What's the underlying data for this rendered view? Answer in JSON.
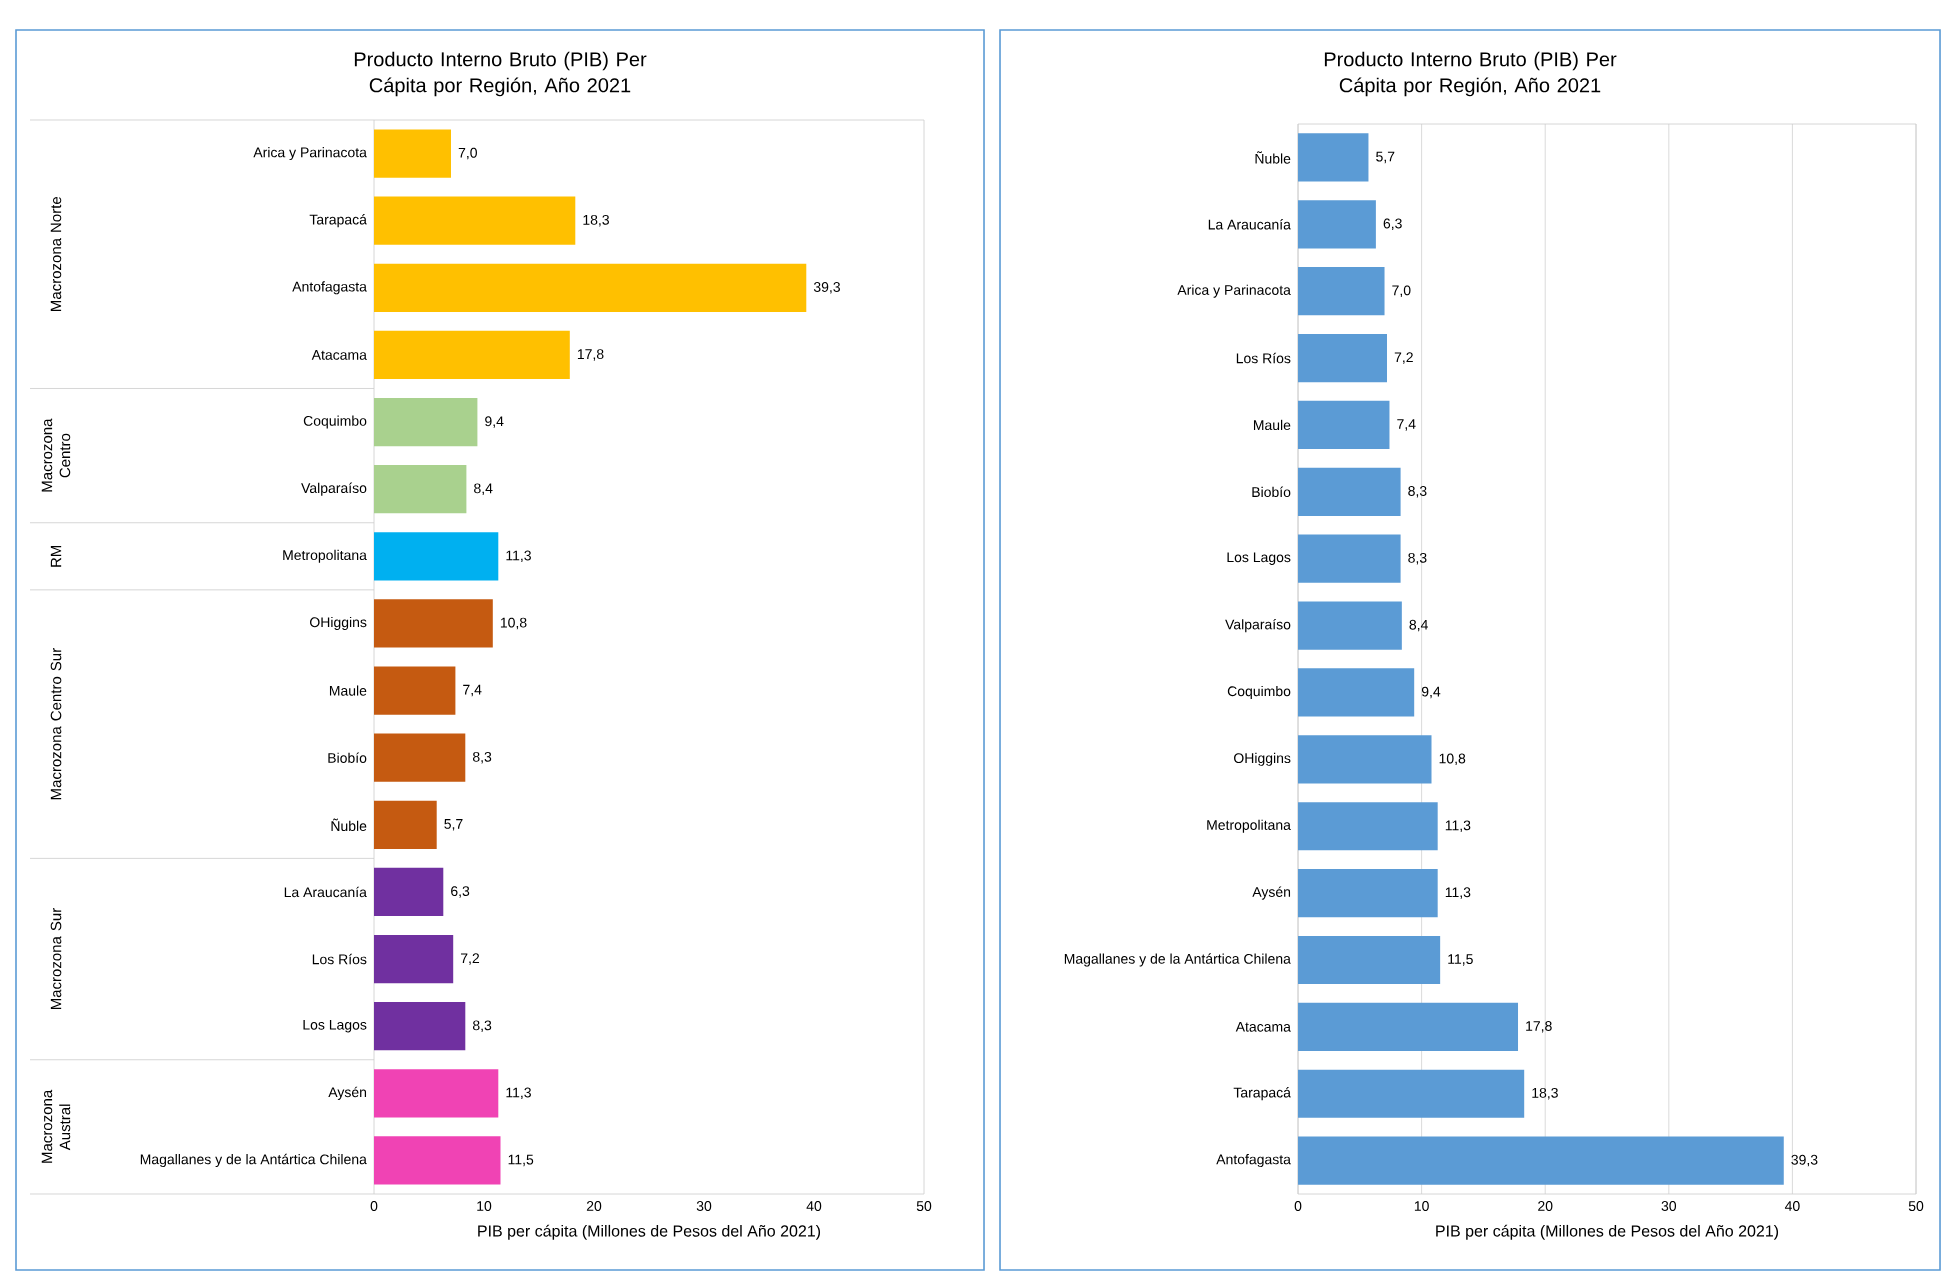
{
  "chart_data": [
    {
      "type": "bar",
      "orientation": "horizontal",
      "title": "Producto Interno Bruto (PIB) Per Cápita por Región, Año 2021",
      "xlabel": "PIB per cápita  (Millones de Pesos del  Año 2021)",
      "categories": [
        "Arica y Parinacota",
        "Tarapacá",
        "Antofagasta",
        "Atacama",
        "Coquimbo",
        "Valparaíso",
        "Metropolitana",
        "OHiggins",
        "Maule",
        "Biobío",
        "Ñuble",
        "La Araucanía",
        "Los Ríos",
        "Los Lagos",
        "Aysén",
        "Magallanes y de la Antártica Chilena"
      ],
      "values": [
        7.0,
        18.3,
        39.3,
        17.8,
        9.4,
        8.4,
        11.3,
        10.8,
        7.4,
        8.3,
        5.7,
        6.3,
        7.2,
        8.3,
        11.3,
        11.5
      ],
      "value_labels": [
        "7,0",
        "18,3",
        "39,3",
        "17,8",
        "9,4",
        "8,4",
        "11,3",
        "10,8",
        "7,4",
        "8,3",
        "5,7",
        "6,3",
        "7,2",
        "8,3",
        "11,3",
        "11,5"
      ],
      "colors": [
        "#ffc000",
        "#ffc000",
        "#ffc000",
        "#ffc000",
        "#a9d18e",
        "#a9d18e",
        "#00b0f0",
        "#c55a11",
        "#c55a11",
        "#c55a11",
        "#c55a11",
        "#7030a0",
        "#7030a0",
        "#7030a0",
        "#f043b4",
        "#f043b4"
      ],
      "annotations": [
        "Macrozona Norte",
        "Macrozona Centro",
        "RM",
        "Macrozona Centro Sur",
        "Macrozona Sur",
        "Macrozona Austral"
      ],
      "xlim": [
        0,
        50
      ],
      "xticks": [
        0,
        10,
        20,
        30,
        40,
        50
      ],
      "grid": false
    },
    {
      "type": "bar",
      "orientation": "horizontal",
      "title": "Producto Interno Bruto (PIB) Per Cápita por Región, Año 2021",
      "xlabel": "PIB per cápita  (Millones de Pesos del  Año 2021)",
      "categories": [
        "Ñuble",
        "La Araucanía",
        "Arica y Parinacota",
        "Los Ríos",
        "Maule",
        "Biobío",
        "Los Lagos",
        "Valparaíso",
        "Coquimbo",
        "OHiggins",
        "Metropolitana",
        "Aysén",
        "Magallanes y de la Antártica Chilena",
        "Atacama",
        "Tarapacá",
        "Antofagasta"
      ],
      "values": [
        5.7,
        6.3,
        7.0,
        7.2,
        7.4,
        8.3,
        8.3,
        8.4,
        9.4,
        10.8,
        11.3,
        11.3,
        11.5,
        17.8,
        18.3,
        39.3
      ],
      "value_labels": [
        "5,7",
        "6,3",
        "7,0",
        "7,2",
        "7,4",
        "8,3",
        "8,3",
        "8,4",
        "9,4",
        "10,8",
        "11,3",
        "11,3",
        "11,5",
        "17,8",
        "18,3",
        "39,3"
      ],
      "color": "#5b9bd5",
      "xlim": [
        0,
        50
      ],
      "xticks": [
        0,
        10,
        20,
        30,
        40,
        50
      ],
      "grid": "x"
    }
  ]
}
